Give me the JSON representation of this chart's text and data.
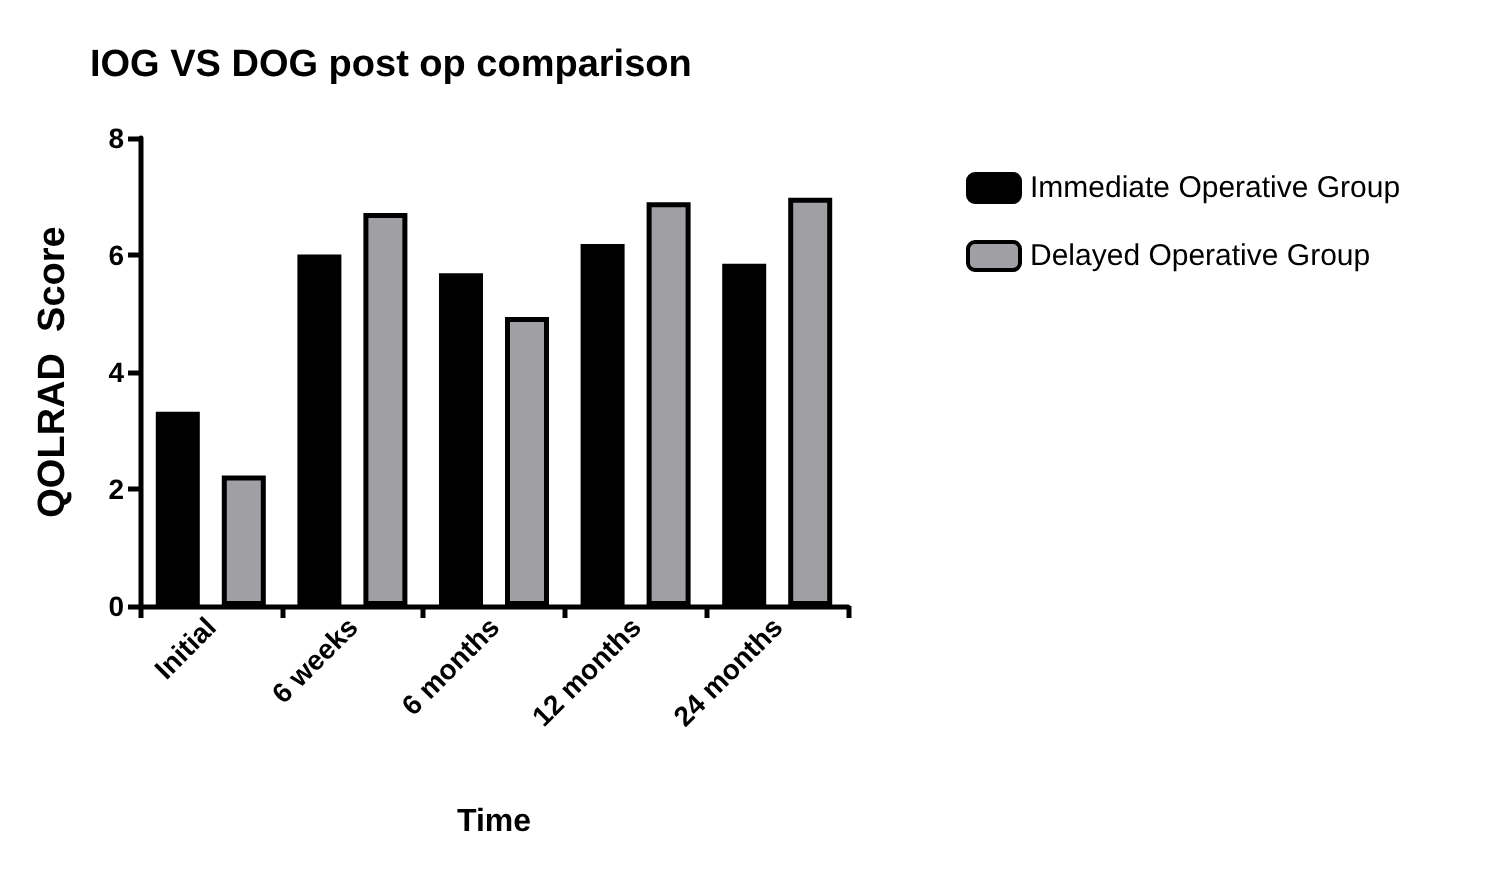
{
  "chart_data": {
    "type": "bar",
    "title": "IOG VS DOG post op comparison",
    "xlabel": "Time",
    "ylabel": "QOLRAD  Score",
    "categories": [
      "Initial",
      "6 weeks",
      "6 months",
      "12 months",
      "24 months"
    ],
    "series": [
      {
        "name": "Immediate Operative Group",
        "color": "#000000",
        "values": [
          3.32,
          6.01,
          5.69,
          6.19,
          5.85
        ]
      },
      {
        "name": "Delayed Operative Group",
        "color": "#a0a0a4",
        "values": [
          2.23,
          6.72,
          4.94,
          6.9,
          6.98
        ]
      }
    ],
    "ylim": [
      0,
      8
    ],
    "yticks": [
      0,
      2,
      4,
      6,
      8
    ],
    "grid": false,
    "legend": "right"
  }
}
